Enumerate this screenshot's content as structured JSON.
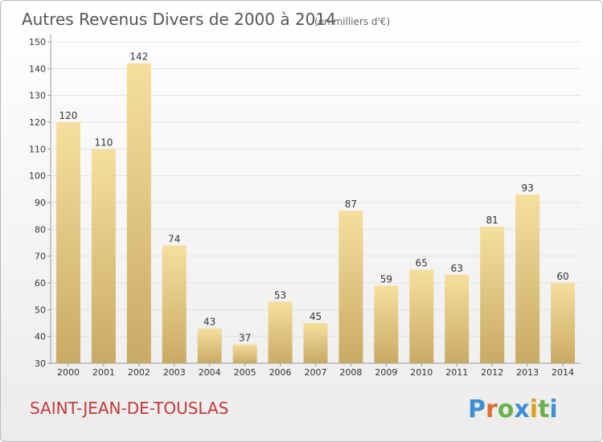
{
  "chart_data": {
    "type": "bar",
    "title": "Autres Revenus Divers de 2000 à 2014",
    "subtitle": "(en milliers d'€)",
    "categories": [
      "2000",
      "2001",
      "2002",
      "2003",
      "2004",
      "2005",
      "2006",
      "2007",
      "2008",
      "2009",
      "2010",
      "2011",
      "2012",
      "2013",
      "2014"
    ],
    "values": [
      120,
      110,
      142,
      74,
      43,
      37,
      53,
      45,
      87,
      59,
      65,
      63,
      81,
      93,
      60
    ],
    "ylim": [
      30,
      150
    ],
    "yticks": [
      30,
      40,
      50,
      60,
      70,
      80,
      90,
      100,
      110,
      120,
      130,
      140,
      150
    ],
    "grid": true,
    "bar_color_top": "#f6df9e",
    "bar_color_bottom": "#c9aa64"
  },
  "commune": "SAINT-JEAN-DE-TOUSLAS",
  "logo": {
    "text": "Proxiti",
    "letter_colors": [
      "#3f8fd4",
      "#e0702a",
      "#6ab04c",
      "#3f8fd4",
      "#e0a020",
      "#6ab04c",
      "#3f8fd4"
    ]
  }
}
